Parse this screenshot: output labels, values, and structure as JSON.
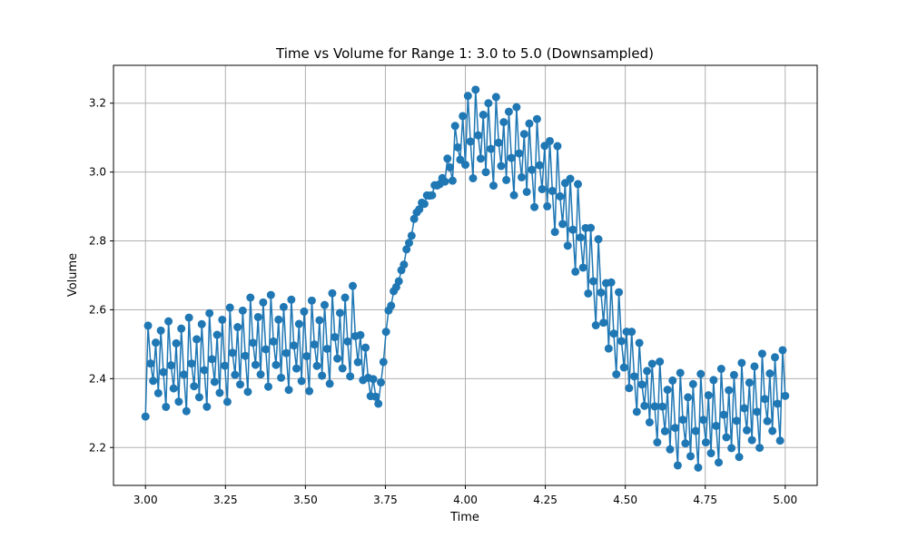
{
  "chart_data": {
    "type": "line",
    "title": "Time vs Volume for Range 1: 3.0 to 5.0 (Downsampled)",
    "xlabel": "Time",
    "ylabel": "Volume",
    "xlim": [
      2.9,
      5.1
    ],
    "ylim": [
      2.09,
      3.31
    ],
    "x_ticks": [
      3.0,
      3.25,
      3.5,
      3.75,
      4.0,
      4.25,
      4.5,
      4.75,
      5.0
    ],
    "x_tick_labels": [
      "3.00",
      "3.25",
      "3.50",
      "3.75",
      "4.00",
      "4.25",
      "4.50",
      "4.75",
      "5.00"
    ],
    "y_ticks": [
      2.2,
      2.4,
      2.6,
      2.8,
      3.0,
      3.2
    ],
    "y_tick_labels": [
      "2.2",
      "2.4",
      "2.6",
      "2.8",
      "3.0",
      "3.2"
    ],
    "grid": true,
    "marker": "circle",
    "color": "#1f77b4",
    "x_range": [
      3.0,
      5.0
    ],
    "n_samples_per_unit": 100,
    "sampled_points": [
      {
        "x": 3.0,
        "y": 2.29
      },
      {
        "x": 3.0,
        "y": 2.55
      },
      {
        "x": 3.02,
        "y": 2.34
      },
      {
        "x": 3.02,
        "y": 2.56
      },
      {
        "x": 3.1,
        "y": 2.3
      },
      {
        "x": 3.1,
        "y": 2.57
      },
      {
        "x": 3.25,
        "y": 2.33
      },
      {
        "x": 3.25,
        "y": 2.6
      },
      {
        "x": 3.36,
        "y": 2.38
      },
      {
        "x": 3.36,
        "y": 2.65
      },
      {
        "x": 3.5,
        "y": 2.36
      },
      {
        "x": 3.5,
        "y": 2.62
      },
      {
        "x": 3.65,
        "y": 2.41
      },
      {
        "x": 3.65,
        "y": 2.67
      },
      {
        "x": 3.73,
        "y": 2.32
      },
      {
        "x": 3.76,
        "y": 2.59
      },
      {
        "x": 3.8,
        "y": 2.7
      },
      {
        "x": 3.85,
        "y": 2.88
      },
      {
        "x": 3.92,
        "y": 2.96
      },
      {
        "x": 4.0,
        "y": 2.99
      },
      {
        "x": 4.0,
        "y": 3.25
      },
      {
        "x": 4.12,
        "y": 2.95
      },
      {
        "x": 4.12,
        "y": 3.21
      },
      {
        "x": 4.25,
        "y": 2.88
      },
      {
        "x": 4.25,
        "y": 3.14
      },
      {
        "x": 4.35,
        "y": 2.7
      },
      {
        "x": 4.35,
        "y": 2.97
      },
      {
        "x": 4.45,
        "y": 2.45
      },
      {
        "x": 4.45,
        "y": 2.72
      },
      {
        "x": 4.55,
        "y": 2.28
      },
      {
        "x": 4.55,
        "y": 2.49
      },
      {
        "x": 4.65,
        "y": 2.15
      },
      {
        "x": 4.65,
        "y": 2.42
      },
      {
        "x": 4.72,
        "y": 2.14
      },
      {
        "x": 4.72,
        "y": 2.41
      },
      {
        "x": 4.85,
        "y": 2.17
      },
      {
        "x": 4.85,
        "y": 2.44
      },
      {
        "x": 4.97,
        "y": 2.22
      },
      {
        "x": 4.97,
        "y": 2.49
      },
      {
        "x": 5.0,
        "y": 2.22
      },
      {
        "x": 5.0,
        "y": 2.48
      }
    ]
  }
}
